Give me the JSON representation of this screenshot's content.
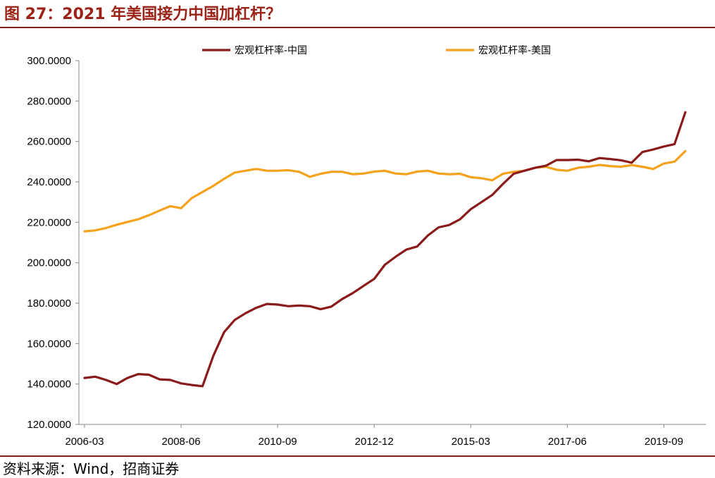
{
  "figure": {
    "title": "图 27：2021 年美国接力中国加杠杆？",
    "source": "资料来源：Wind，招商证券"
  },
  "chart_data": {
    "type": "line",
    "title": "",
    "xlabel": "",
    "ylabel": "",
    "ylim": [
      120,
      300
    ],
    "yticks": [
      "120.0000",
      "140.0000",
      "160.0000",
      "180.0000",
      "200.0000",
      "220.0000",
      "240.0000",
      "260.0000",
      "280.0000",
      "300.0000"
    ],
    "xticks": [
      "2006-03",
      "2008-06",
      "2010-09",
      "2012-12",
      "2015-03",
      "2017-06",
      "2019-09"
    ],
    "x": [
      "2006-03",
      "2006-06",
      "2006-09",
      "2006-12",
      "2007-03",
      "2007-06",
      "2007-09",
      "2007-12",
      "2008-03",
      "2008-06",
      "2008-09",
      "2008-12",
      "2009-03",
      "2009-06",
      "2009-09",
      "2009-12",
      "2010-03",
      "2010-06",
      "2010-09",
      "2010-12",
      "2011-03",
      "2011-06",
      "2011-09",
      "2011-12",
      "2012-03",
      "2012-06",
      "2012-09",
      "2012-12",
      "2013-03",
      "2013-06",
      "2013-09",
      "2013-12",
      "2014-03",
      "2014-06",
      "2014-09",
      "2014-12",
      "2015-03",
      "2015-06",
      "2015-09",
      "2015-12",
      "2016-03",
      "2016-06",
      "2016-09",
      "2016-12",
      "2017-03",
      "2017-06",
      "2017-09",
      "2017-12",
      "2018-03",
      "2018-06",
      "2018-09",
      "2018-12",
      "2019-03",
      "2019-06",
      "2019-09",
      "2019-12",
      "2020-03"
    ],
    "series": [
      {
        "name": "宏观杠杆率-中国",
        "color": "#8b1a1a",
        "values": [
          143.0,
          143.6,
          142.0,
          140.0,
          143.0,
          144.9,
          144.6,
          142.3,
          142.0,
          140.3,
          139.5,
          138.9,
          153.9,
          165.6,
          171.7,
          175.0,
          177.7,
          179.6,
          179.3,
          178.5,
          178.8,
          178.5,
          177.0,
          178.3,
          182.0,
          185.0,
          188.5,
          192.0,
          199.0,
          203.0,
          206.5,
          208.0,
          213.5,
          217.5,
          218.7,
          221.5,
          226.5,
          230.0,
          233.5,
          239.0,
          244.0,
          245.5,
          247.0,
          248.0,
          250.8,
          250.8,
          251.0,
          250.2,
          251.8,
          251.3,
          250.7,
          249.5,
          254.8,
          256.0,
          257.5,
          258.7,
          274.5
        ]
      },
      {
        "name": "宏观杠杆率-美国",
        "color": "#f4a11c",
        "values": [
          215.5,
          216.0,
          217.2,
          218.8,
          220.2,
          221.5,
          223.5,
          225.8,
          228.0,
          227.0,
          232.0,
          235.0,
          238.0,
          241.5,
          244.6,
          245.5,
          246.4,
          245.5,
          245.5,
          245.8,
          245.0,
          242.5,
          244.0,
          245.0,
          245.0,
          243.8,
          244.1,
          245.1,
          245.5,
          244.1,
          243.8,
          245.1,
          245.5,
          244.1,
          243.8,
          244.0,
          242.3,
          241.8,
          240.8,
          244.0,
          245.0,
          245.5,
          247.0,
          247.5,
          246.0,
          245.5,
          247.0,
          247.5,
          248.4,
          247.8,
          247.5,
          248.3,
          247.5,
          246.4,
          249.1,
          250.0,
          255.2
        ]
      }
    ],
    "legend_position": "top",
    "grid": false
  }
}
